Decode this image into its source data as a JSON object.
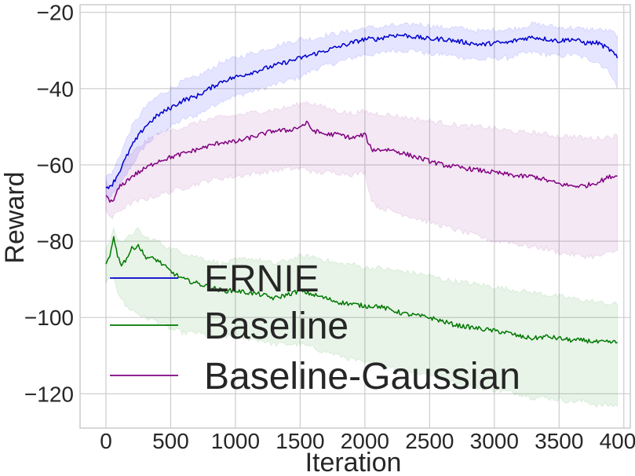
{
  "chart_data": {
    "type": "line",
    "title": "",
    "xlabel": "Iteration",
    "ylabel": "Reward",
    "xlim": [
      -200,
      4050
    ],
    "ylim": [
      -129,
      -18
    ],
    "xticks": [
      0,
      500,
      1000,
      1500,
      2000,
      2500,
      3000,
      3500,
      4000
    ],
    "yticks": [
      -120,
      -100,
      -80,
      -60,
      -40,
      -20
    ],
    "xtick_labels": [
      "0",
      "500",
      "1000",
      "1500",
      "2000",
      "2500",
      "3000",
      "3500",
      "4000"
    ],
    "ytick_labels": [
      "−120",
      "−100",
      "−80",
      "−60",
      "−40",
      "−20"
    ],
    "grid": true,
    "legend_position": "lower-left",
    "series": [
      {
        "name": "ERNIE",
        "color": "#0000cc",
        "fill_color": "#0000ff",
        "x": [
          0,
          50,
          100,
          200,
          300,
          400,
          500,
          600,
          700,
          800,
          900,
          1000,
          1100,
          1200,
          1300,
          1400,
          1500,
          1600,
          1700,
          1800,
          1900,
          2000,
          2100,
          2200,
          2300,
          2400,
          2500,
          2600,
          2700,
          2800,
          2900,
          3000,
          3100,
          3200,
          3300,
          3400,
          3500,
          3600,
          3700,
          3800,
          3900,
          3950
        ],
        "y": [
          -66,
          -65,
          -62,
          -55,
          -50,
          -47,
          -45,
          -43,
          -42,
          -40,
          -38,
          -37,
          -36,
          -35,
          -34,
          -33,
          -32,
          -31,
          -30,
          -29,
          -28,
          -27,
          -27,
          -26,
          -26,
          -26.5,
          -27,
          -27,
          -27.5,
          -28,
          -28.5,
          -28,
          -28,
          -27,
          -26.5,
          -27,
          -27.5,
          -27,
          -28,
          -28,
          -30,
          -32
        ],
        "lower": [
          -69,
          -68,
          -66,
          -60,
          -55,
          -52,
          -50,
          -48,
          -47,
          -45,
          -43,
          -42,
          -41,
          -40,
          -39,
          -38,
          -37,
          -35,
          -34,
          -33,
          -32,
          -31,
          -31,
          -30,
          -30,
          -30,
          -31,
          -31,
          -31.5,
          -32,
          -32.5,
          -32,
          -32,
          -31,
          -30.5,
          -31,
          -31.5,
          -31,
          -32,
          -33,
          -36,
          -40
        ],
        "upper": [
          -63,
          -62,
          -58,
          -50,
          -45,
          -42,
          -40,
          -38,
          -37,
          -35,
          -33,
          -32,
          -31,
          -30,
          -29,
          -28,
          -27,
          -27,
          -26,
          -25.5,
          -25,
          -24,
          -24,
          -23.5,
          -23.5,
          -23,
          -23.5,
          -24,
          -24,
          -24.5,
          -25,
          -24.5,
          -24.5,
          -24,
          -23,
          -23.5,
          -24,
          -24,
          -24.5,
          -24.5,
          -25,
          -26
        ]
      },
      {
        "name": "Baseline",
        "color": "#007700",
        "fill_color": "#008000",
        "x": [
          0,
          30,
          60,
          90,
          120,
          150,
          200,
          250,
          300,
          400,
          500,
          600,
          700,
          800,
          900,
          1000,
          1100,
          1200,
          1300,
          1400,
          1500,
          1600,
          1700,
          1800,
          1900,
          2000,
          2100,
          2200,
          2300,
          2400,
          2500,
          2600,
          2700,
          2800,
          2900,
          3000,
          3100,
          3200,
          3300,
          3400,
          3500,
          3600,
          3700,
          3800,
          3900,
          3950
        ],
        "y": [
          -86,
          -84,
          -78.5,
          -84,
          -86,
          -85,
          -82,
          -81,
          -84,
          -85,
          -88,
          -90,
          -91,
          -92,
          -93,
          -93,
          -93.5,
          -94,
          -95,
          -94,
          -93,
          -94,
          -95,
          -96,
          -96.5,
          -97,
          -97,
          -98,
          -99,
          -99.5,
          -100,
          -101,
          -102,
          -102.5,
          -103,
          -103.5,
          -104,
          -105,
          -105.5,
          -105,
          -105.5,
          -106,
          -106,
          -106.5,
          -106.5,
          -106.5
        ],
        "lower": [
          -91,
          -90,
          -89,
          -93,
          -95,
          -97,
          -98,
          -99,
          -100,
          -101,
          -103,
          -104,
          -104,
          -105,
          -105,
          -105,
          -105.5,
          -106,
          -107,
          -107,
          -107,
          -108,
          -109,
          -110,
          -111,
          -112,
          -112,
          -113,
          -114,
          -114.5,
          -115,
          -116,
          -117,
          -118,
          -118.5,
          -119,
          -119.5,
          -120,
          -121,
          -121,
          -121.5,
          -122,
          -122,
          -123,
          -123,
          -123
        ],
        "upper": [
          -82,
          -80,
          -77,
          -79,
          -80,
          -80,
          -78,
          -77,
          -79,
          -80,
          -82,
          -83,
          -84,
          -85,
          -86,
          -85,
          -84.5,
          -85,
          -86,
          -85,
          -84,
          -84,
          -85,
          -86,
          -86,
          -87,
          -87,
          -87.5,
          -88,
          -88.5,
          -89,
          -90,
          -90.5,
          -91,
          -91.5,
          -92,
          -92.5,
          -93,
          -93.5,
          -94,
          -94.5,
          -95,
          -95.5,
          -96,
          -96.5,
          -96.5
        ]
      },
      {
        "name": "Baseline-Gaussian",
        "color": "#800080",
        "fill_color": "#800080",
        "x": [
          0,
          50,
          100,
          200,
          300,
          400,
          500,
          600,
          700,
          800,
          900,
          1000,
          1100,
          1200,
          1300,
          1400,
          1500,
          1550,
          1600,
          1700,
          1800,
          1900,
          2000,
          2050,
          2100,
          2200,
          2300,
          2400,
          2500,
          2600,
          2700,
          2800,
          2900,
          3000,
          3100,
          3200,
          3300,
          3400,
          3500,
          3600,
          3700,
          3800,
          3900,
          3950
        ],
        "y": [
          -68,
          -70,
          -66,
          -63,
          -61,
          -59,
          -58,
          -57,
          -56,
          -55,
          -54,
          -54,
          -53,
          -52,
          -51,
          -51,
          -50,
          -49,
          -51,
          -52,
          -52,
          -53,
          -52,
          -56,
          -56,
          -56,
          -57,
          -58,
          -59,
          -60,
          -60.5,
          -61,
          -61.5,
          -62,
          -62.5,
          -63,
          -63,
          -64,
          -65,
          -65.5,
          -65.5,
          -64.5,
          -63,
          -63
        ],
        "lower": [
          -72,
          -74,
          -72,
          -70,
          -69,
          -68,
          -67,
          -66,
          -65,
          -64,
          -63.5,
          -63,
          -62.5,
          -62,
          -61.5,
          -61,
          -61,
          -61,
          -62,
          -62,
          -62,
          -62.5,
          -62,
          -69,
          -71,
          -72,
          -73,
          -74,
          -75,
          -76,
          -77,
          -78,
          -79,
          -80,
          -80,
          -81,
          -81.5,
          -82,
          -83,
          -83.5,
          -84,
          -84,
          -83,
          -82.5
        ],
        "upper": [
          -64,
          -66,
          -62,
          -57,
          -54,
          -52,
          -51,
          -50,
          -49,
          -48,
          -47.5,
          -47,
          -46.5,
          -46,
          -45.5,
          -45,
          -44,
          -43.5,
          -44,
          -45,
          -46,
          -46.5,
          -46,
          -46.5,
          -46.5,
          -47,
          -47.5,
          -48,
          -48.5,
          -49,
          -49.5,
          -50,
          -50,
          -50.5,
          -51,
          -51.5,
          -51.5,
          -52,
          -52.5,
          -52.5,
          -53,
          -53,
          -52.5,
          -52.5
        ]
      }
    ]
  }
}
